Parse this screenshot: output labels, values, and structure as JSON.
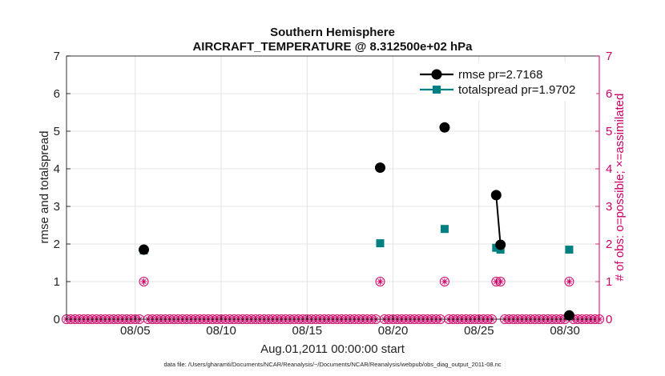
{
  "chart_data": {
    "type": "line",
    "title": "Southern Hemisphere",
    "subtitle": "AIRCRAFT_TEMPERATURE @ 8.312500e+02 hPa",
    "xlabel": "Aug.01,2011 00:00:00 start",
    "ylabel": "rmse and totalspread",
    "y2label": "# of obs: o=possible; ×=assimilated",
    "footnote": "data file: /Users/gharamti/Documents/NCAR/Reanalysis/~/Documents/NCAR/Reanalysis/webpub/obs_diag_output_2011-08.nc",
    "xlim": [
      1.0,
      32.0
    ],
    "ylim": [
      0,
      7
    ],
    "y2lim": [
      0,
      7
    ],
    "x_ticks": [
      5,
      10,
      15,
      20,
      25,
      30
    ],
    "x_tick_labels": [
      "08/05",
      "08/10",
      "08/15",
      "08/20",
      "08/25",
      "08/30"
    ],
    "y_ticks": [
      "0",
      "1",
      "2",
      "3",
      "4",
      "5",
      "6",
      "7"
    ],
    "y2_ticks": [
      "0",
      "1",
      "2",
      "3",
      "4",
      "5",
      "6",
      "7"
    ],
    "grid": true,
    "legend_position": "top-right",
    "colors": {
      "rmse": "#000000",
      "totalspread": "#008080",
      "obs": "#cc0066",
      "grid": "#dddddd"
    },
    "series": [
      {
        "name": "rmse pr=2.7168",
        "marker": "circle",
        "x": [
          5.5,
          19.25,
          23.0,
          26.0,
          26.25,
          30.25
        ],
        "y": [
          1.85,
          4.03,
          5.1,
          3.3,
          1.98,
          0.1
        ],
        "segments": [
          [
            3,
            4
          ]
        ]
      },
      {
        "name": "totalspread pr=1.9702",
        "marker": "square",
        "x": [
          5.5,
          19.25,
          23.0,
          26.0,
          26.25,
          30.25
        ],
        "y": [
          1.83,
          2.02,
          2.4,
          1.9,
          1.85,
          1.85
        ]
      },
      {
        "name": "obs possible",
        "axis": "right",
        "marker": "circle-open",
        "x_start": 1.0,
        "x_step": 0.25,
        "count": 125,
        "nonzero": [
          {
            "x": 5.5,
            "y": 1
          },
          {
            "x": 19.25,
            "y": 1
          },
          {
            "x": 23.0,
            "y": 1
          },
          {
            "x": 26.0,
            "y": 1
          },
          {
            "x": 26.25,
            "y": 1
          },
          {
            "x": 30.25,
            "y": 1
          }
        ]
      },
      {
        "name": "obs assimilated",
        "axis": "right",
        "marker": "star",
        "x_start": 1.0,
        "x_step": 0.25,
        "count": 125,
        "nonzero": [
          {
            "x": 5.5,
            "y": 1
          },
          {
            "x": 19.25,
            "y": 1
          },
          {
            "x": 23.0,
            "y": 1
          },
          {
            "x": 26.0,
            "y": 1
          },
          {
            "x": 26.25,
            "y": 1
          },
          {
            "x": 30.25,
            "y": 1
          }
        ]
      }
    ]
  }
}
